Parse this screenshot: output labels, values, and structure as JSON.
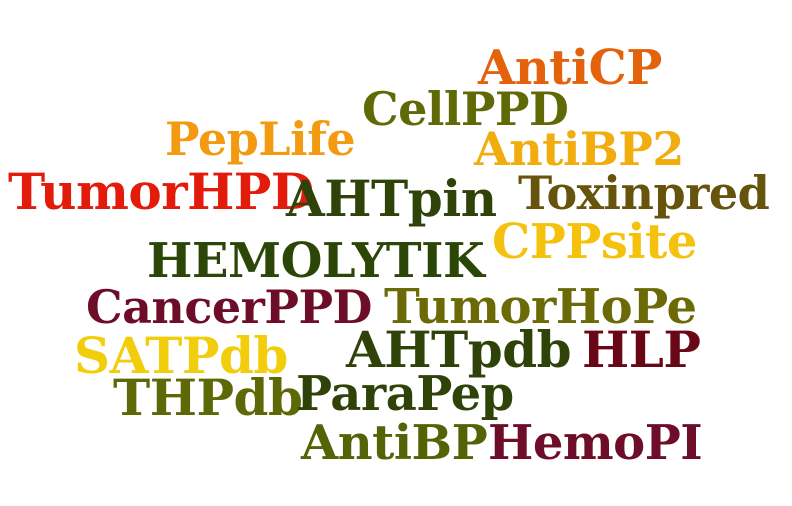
{
  "words": [
    {
      "key": "anticp",
      "text": "AntiCP",
      "color": "#e4620c"
    },
    {
      "key": "cellppd",
      "text": "CellPPD",
      "color": "#5f6a06"
    },
    {
      "key": "peplife",
      "text": "PepLife",
      "color": "#f49a10"
    },
    {
      "key": "antibp2",
      "text": "AntiBP2",
      "color": "#f1ac0e"
    },
    {
      "key": "tumorhpd",
      "text": "TumorHPD",
      "color": "#e31b0a"
    },
    {
      "key": "ahtpin",
      "text": "AHTpin",
      "color": "#2f4309"
    },
    {
      "key": "toxinpred",
      "text": "Toxinpred",
      "color": "#66530c"
    },
    {
      "key": "cppsite",
      "text": "CPPsite",
      "color": "#f4c20d"
    },
    {
      "key": "hemolytik",
      "text": "HEMOLYTIK",
      "color": "#2b4607"
    },
    {
      "key": "cancerppd",
      "text": "CancerPPD",
      "color": "#6e0d2a"
    },
    {
      "key": "tumorhope",
      "text": "TumorHoPe",
      "color": "#6b6a06"
    },
    {
      "key": "satpdb",
      "text": "SATPdb",
      "color": "#f2cd0c"
    },
    {
      "key": "ahtpdb",
      "text": "AHTpdb",
      "color": "#2f4309"
    },
    {
      "key": "hlp",
      "text": "HLP",
      "color": "#6a0717"
    },
    {
      "key": "thpdb",
      "text": "THPdb",
      "color": "#5d6906"
    },
    {
      "key": "parapep",
      "text": "ParaPep",
      "color": "#2f4309"
    },
    {
      "key": "antibp",
      "text": "AntiBP",
      "color": "#556307"
    },
    {
      "key": "hemopi",
      "text": "HemoPI",
      "color": "#6e0d2a"
    }
  ]
}
